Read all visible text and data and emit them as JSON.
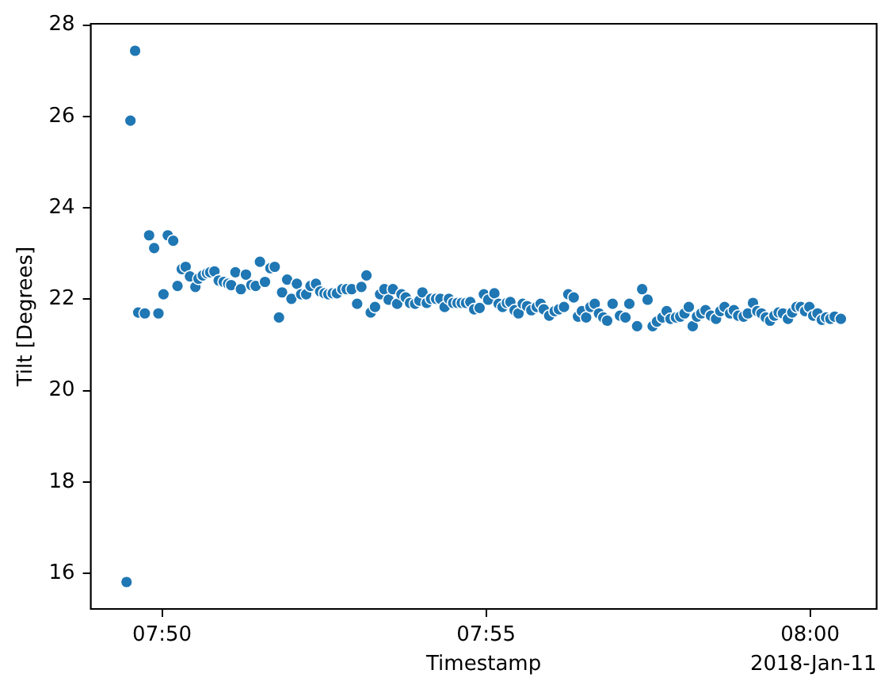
{
  "chart_data": {
    "type": "scatter",
    "xlabel": "Timestamp",
    "ylabel": "Tilt [Degrees]",
    "annotations": [
      "2018-Jan-11"
    ],
    "color": "#1f77b4",
    "marker": "circle",
    "x": [
      7.8242,
      7.8252,
      7.8264,
      7.8272,
      7.8289,
      7.83,
      7.8313,
      7.8324,
      7.8337,
      7.8348,
      7.8362,
      7.8373,
      7.8384,
      7.8394,
      7.8405,
      7.8419,
      7.8427,
      7.8438,
      7.8449,
      7.8457,
      7.8468,
      7.8479,
      7.8492,
      7.8503,
      7.8511,
      7.8522,
      7.8536,
      7.8549,
      7.8563,
      7.8574,
      7.8585,
      7.8598,
      7.8612,
      7.8623,
      7.8634,
      7.8642,
      7.8655,
      7.8666,
      7.868,
      7.8691,
      7.8704,
      7.8715,
      7.8729,
      7.874,
      7.8751,
      7.8761,
      7.8772,
      7.8783,
      7.8797,
      7.8808,
      7.8821,
      7.8835,
      7.8846,
      7.8859,
      7.887,
      7.8881,
      7.8894,
      7.8905,
      7.8916,
      7.8927,
      7.8938,
      7.8949,
      7.896,
      7.8971,
      7.8984,
      7.8995,
      7.9003,
      7.9014,
      7.9025,
      7.9038,
      7.9049,
      7.906,
      7.9071,
      7.9082,
      7.9093,
      7.9104,
      7.9115,
      7.9126,
      7.9136,
      7.915,
      7.9161,
      7.9172,
      7.9188,
      7.9199,
      7.9209,
      7.922,
      7.9229,
      7.924,
      7.925,
      7.9261,
      7.9272,
      7.9283,
      7.9297,
      7.9307,
      7.9315,
      7.9329,
      7.9343,
      7.9354,
      7.9367,
      7.9378,
      7.9392,
      7.9403,
      7.9413,
      7.9424,
      7.9435,
      7.9446,
      7.9457,
      7.9468,
      7.9478,
      7.9492,
      7.9511,
      7.9525,
      7.9535,
      7.9555,
      7.9568,
      7.9582,
      7.9595,
      7.9606,
      7.962,
      7.9631,
      7.9641,
      7.9655,
      7.9666,
      7.9677,
      7.9688,
      7.9698,
      7.9709,
      7.972,
      7.9731,
      7.9745,
      7.9758,
      7.9769,
      7.978,
      7.9794,
      7.9804,
      7.9815,
      7.9829,
      7.984,
      7.9853,
      7.9864,
      7.9875,
      7.9886,
      7.9897,
      7.9908,
      7.9919,
      7.993,
      7.9943,
      7.9954,
      7.9965,
      7.9976,
      7.9987,
      7.9998,
      8.0008,
      8.0019,
      8.003,
      8.0041,
      8.0052,
      8.0063,
      8.0079
    ],
    "values": [
      15.81,
      25.91,
      27.44,
      21.71,
      21.69,
      23.4,
      23.12,
      21.69,
      22.11,
      23.4,
      23.28,
      22.29,
      22.66,
      22.71,
      22.5,
      22.27,
      22.45,
      22.52,
      22.57,
      22.59,
      22.61,
      22.41,
      22.38,
      22.34,
      22.31,
      22.59,
      22.22,
      22.54,
      22.31,
      22.29,
      22.82,
      22.38,
      22.68,
      22.71,
      21.6,
      22.15,
      22.43,
      22.01,
      22.34,
      22.11,
      22.11,
      22.29,
      22.34,
      22.17,
      22.13,
      22.11,
      22.13,
      22.13,
      22.22,
      22.22,
      22.22,
      21.9,
      22.27,
      22.52,
      21.71,
      21.83,
      22.11,
      22.22,
      21.99,
      22.22,
      21.9,
      22.11,
      22.04,
      21.92,
      21.9,
      21.97,
      22.15,
      21.92,
      22.01,
      22.01,
      22.01,
      21.83,
      22.01,
      21.92,
      21.92,
      21.92,
      21.92,
      21.94,
      21.78,
      21.81,
      22.11,
      21.99,
      22.13,
      21.9,
      21.83,
      21.92,
      21.94,
      21.76,
      21.69,
      21.9,
      21.85,
      21.76,
      21.83,
      21.9,
      21.78,
      21.64,
      21.74,
      21.78,
      21.83,
      22.11,
      22.04,
      21.62,
      21.74,
      21.6,
      21.83,
      21.9,
      21.69,
      21.6,
      21.53,
      21.9,
      21.64,
      21.6,
      21.9,
      21.41,
      22.22,
      21.99,
      21.41,
      21.51,
      21.6,
      21.74,
      21.57,
      21.6,
      21.62,
      21.69,
      21.83,
      21.41,
      21.62,
      21.69,
      21.76,
      21.64,
      21.57,
      21.74,
      21.83,
      21.69,
      21.76,
      21.64,
      21.62,
      21.69,
      21.92,
      21.74,
      21.69,
      21.6,
      21.53,
      21.64,
      21.71,
      21.69,
      21.57,
      21.71,
      21.83,
      21.83,
      21.74,
      21.83,
      21.64,
      21.69,
      21.55,
      21.6,
      21.57,
      21.62,
      21.57
    ],
    "xlim": [
      7.815,
      8.0171
    ],
    "xticks": [
      {
        "value": 7.833333,
        "label": "07:50"
      },
      {
        "value": 7.916667,
        "label": "07:55"
      },
      {
        "value": 8,
        "label": "08:00"
      }
    ],
    "ylim": [
      15.22,
      28.03
    ],
    "yticks": [
      16,
      18,
      20,
      22,
      24,
      26,
      28
    ]
  }
}
